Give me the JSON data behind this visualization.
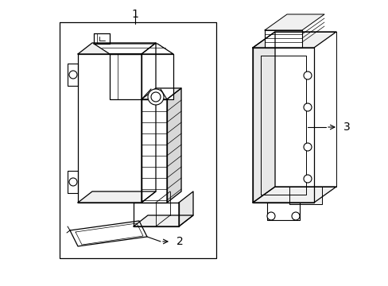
{
  "background_color": "#ffffff",
  "line_color": "#000000",
  "lw": 0.8,
  "fig_w": 4.89,
  "fig_h": 3.6,
  "dpi": 100
}
